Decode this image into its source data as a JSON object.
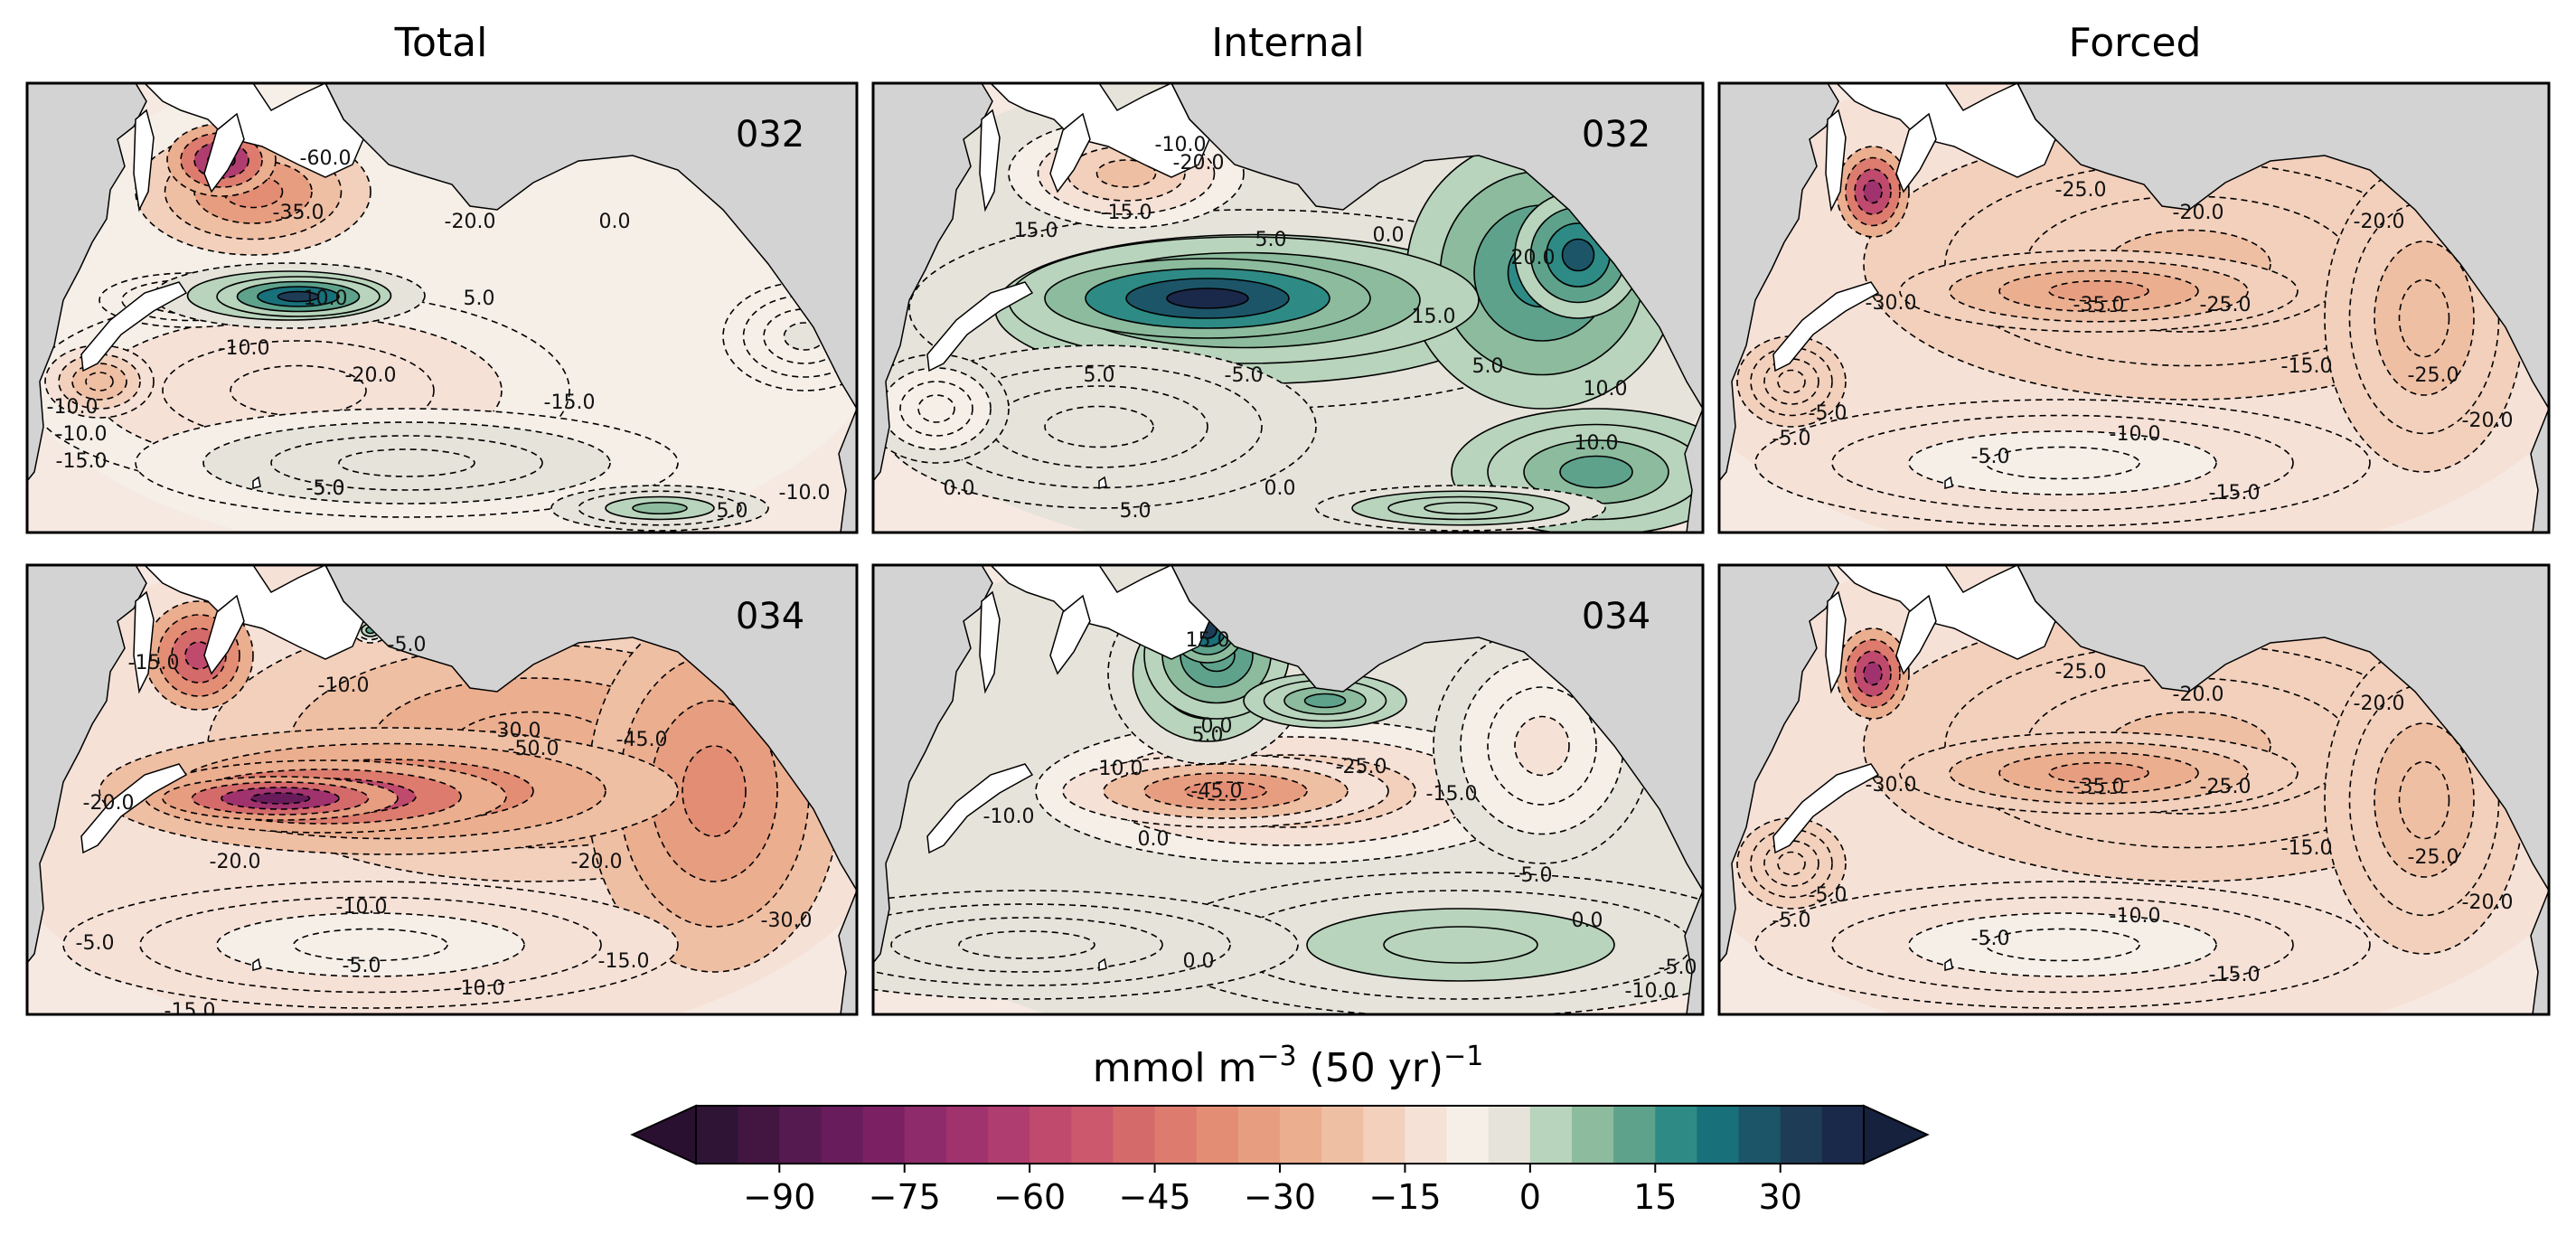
{
  "columns": [
    {
      "title": "Total"
    },
    {
      "title": "Internal"
    },
    {
      "title": "Forced"
    }
  ],
  "panels": [
    {
      "column": "Total",
      "label": "032",
      "contour_labels": [
        "-10.0",
        "-15.0",
        "-5.0",
        "-20.0",
        "-35.0",
        "-60.0",
        "-20.0",
        "0.0",
        "5.0",
        "10.0",
        "-10.0",
        "-10.0",
        "-5.0",
        "5.0",
        "-15.0",
        "-10.0"
      ]
    },
    {
      "column": "Internal",
      "label": "032",
      "contour_labels": [
        "-10.0",
        "-20.0",
        "-15.0",
        "15.0",
        "5.0",
        "0.0",
        "20.0",
        "15.0",
        "10.0",
        "-5.0",
        "5.0",
        "0.0",
        "0.0",
        "5.0",
        "5.0",
        "10.0"
      ]
    },
    {
      "column": "Forced",
      "label": "",
      "contour_labels": [
        "-25.0",
        "-20.0",
        "-20.0",
        "-30.0",
        "-35.0",
        "-25.0",
        "-15.0",
        "-10.0",
        "-5.0",
        "-5.0",
        "-15.0",
        "-25.0",
        "-20.0",
        "-5.0"
      ]
    },
    {
      "column": "Total",
      "label": "034",
      "contour_labels": [
        "-5.0",
        "-15.0",
        "-10.0",
        "-30.0",
        "-50.0",
        "-45.0",
        "-20.0",
        "-20.0",
        "-20.0",
        "-10.0",
        "-5.0",
        "-5.0",
        "-10.0",
        "-15.0",
        "-30.0",
        "-15.0"
      ]
    },
    {
      "column": "Internal",
      "label": "034",
      "contour_labels": [
        "15.0",
        "5.0",
        "0.0",
        "-10.0",
        "-25.0",
        "-45.0",
        "-10.0",
        "0.0",
        "-15.0",
        "-5.0",
        "0.0",
        "0.0",
        "-10.0",
        "-5.0"
      ]
    },
    {
      "column": "Forced",
      "label": "",
      "contour_labels": [
        "-25.0",
        "-20.0",
        "-20.0",
        "-30.0",
        "-35.0",
        "-25.0",
        "-15.0",
        "-10.0",
        "-5.0",
        "-5.0",
        "-15.0",
        "-25.0",
        "-20.0",
        "-5.0"
      ]
    }
  ],
  "colorbar": {
    "label_main": "mmol m",
    "label_sup1": "−3",
    "label_mid": " (50 yr)",
    "label_sup2": "−1",
    "min": -100,
    "max": 40,
    "step": 5,
    "ticks": [
      -90,
      -75,
      -60,
      -45,
      -30,
      -15,
      0,
      15,
      30
    ],
    "tick_labels": [
      "−90",
      "−75",
      "−60",
      "−45",
      "−30",
      "−15",
      "0",
      "15",
      "30"
    ],
    "extend": "both",
    "colors": [
      "#2f1436",
      "#431642",
      "#551a4f",
      "#681c5b",
      "#7b2163",
      "#8e2b6a",
      "#a0326e",
      "#b03d6f",
      "#bf4a6d",
      "#cb586c",
      "#d56a6b",
      "#dd7c6e",
      "#e38d74",
      "#e79e80",
      "#ebae8f",
      "#efbfa4",
      "#f2d0bc",
      "#f6e1d7",
      "#f5efe8",
      "#e6e3da",
      "#b8d4bc",
      "#8cbb9d",
      "#5ea28c",
      "#2e8a84",
      "#17707a",
      "#1c5568",
      "#1e3c56",
      "#1a2849"
    ],
    "under_color": "#2a1030",
    "over_color": "#15213d"
  },
  "map_colors": {
    "land": "#d3d3d3",
    "coast_land": "#ffffff",
    "frame": "#000000"
  }
}
